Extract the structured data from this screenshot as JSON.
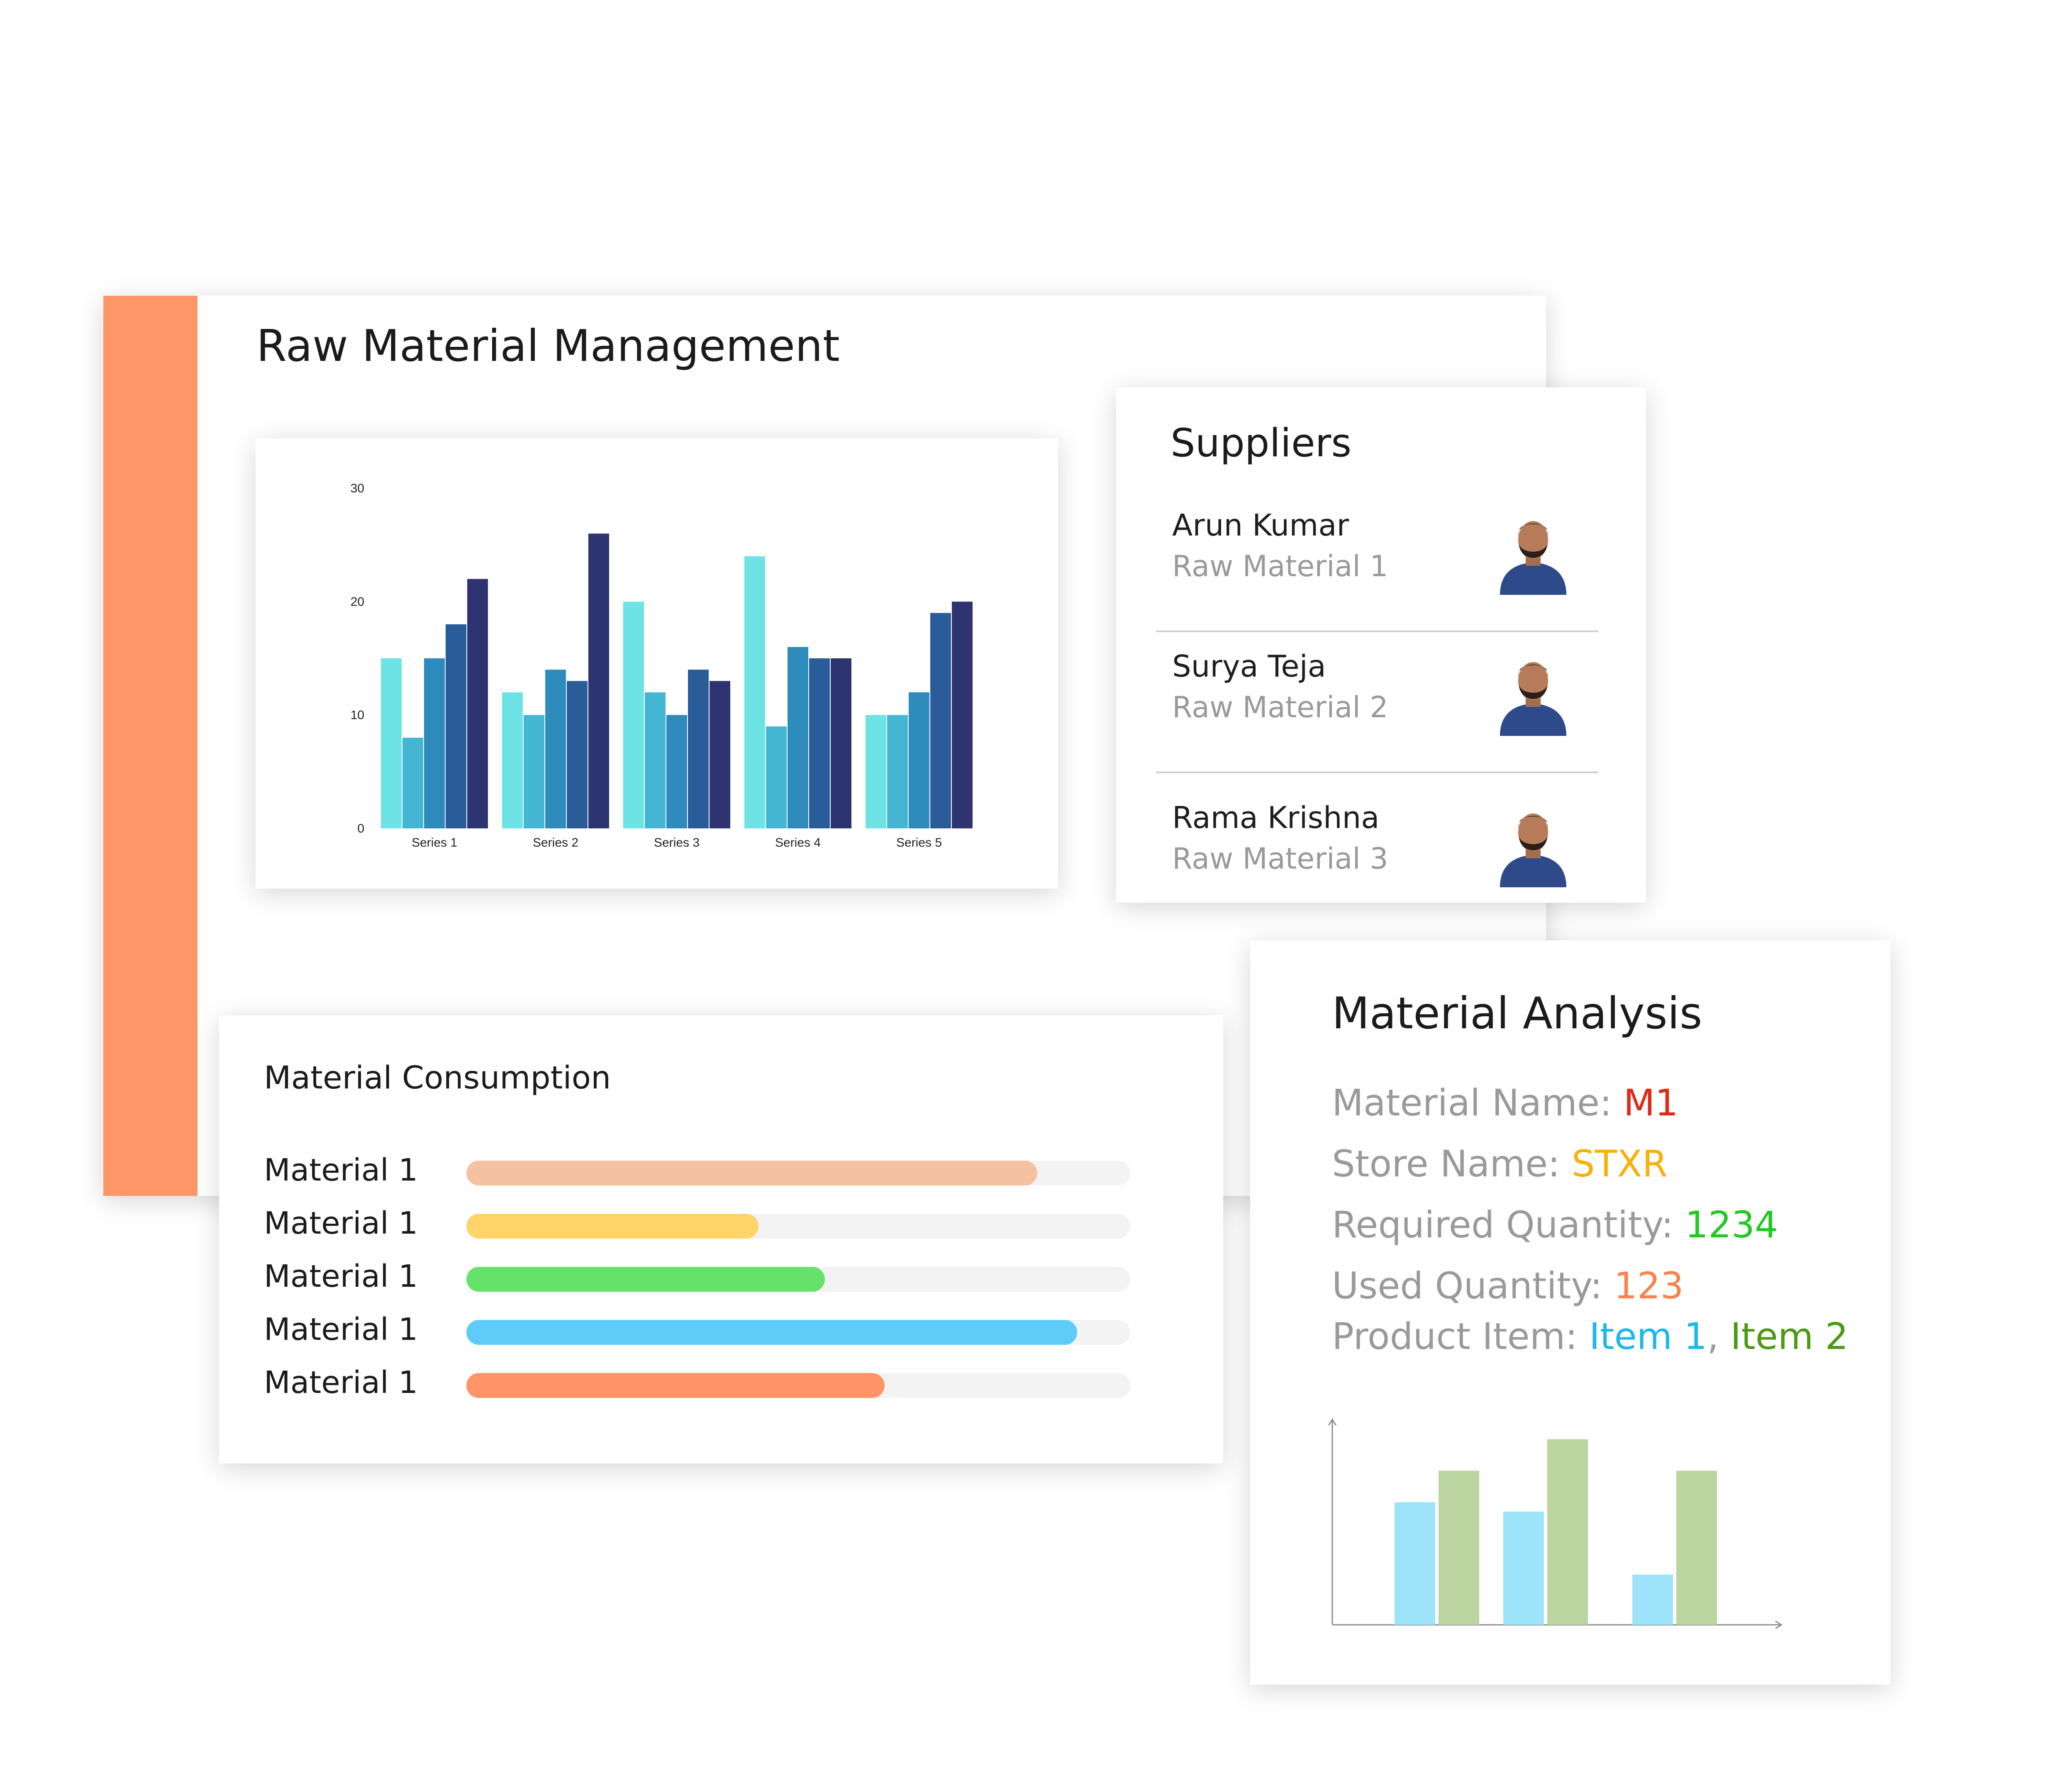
{
  "main": {
    "title": "Raw Material Management",
    "accent_color": "#ff9668"
  },
  "chart_data": [
    {
      "type": "bar",
      "categories": [
        "Series 1",
        "Series 2",
        "Series 3",
        "Series 4",
        "Series 5"
      ],
      "series": [
        {
          "values": [
            15,
            12,
            20,
            24,
            10
          ],
          "color": "#6ee3e5"
        },
        {
          "values": [
            8,
            10,
            12,
            9,
            10
          ],
          "color": "#44b6d4"
        },
        {
          "values": [
            15,
            14,
            10,
            16,
            12
          ],
          "color": "#2d8cbc"
        },
        {
          "values": [
            18,
            13,
            14,
            15,
            19
          ],
          "color": "#2b5c9a"
        },
        {
          "values": [
            22,
            26,
            13,
            15,
            20
          ],
          "color": "#2e3470"
        }
      ],
      "yticks": [
        0,
        10,
        20,
        30
      ],
      "ylim": [
        0,
        30
      ],
      "grid": false,
      "legend": "none"
    },
    {
      "type": "bar",
      "categories": [
        "",
        "",
        ""
      ],
      "series": [
        {
          "values": [
            3.9,
            3.6,
            1.6
          ],
          "color": "#9de3fa"
        },
        {
          "values": [
            4.9,
            5.9,
            4.9
          ],
          "color": "#bcd4a0"
        }
      ],
      "ylim": [
        0,
        6
      ],
      "axes": "arrows",
      "tick_labels": false
    }
  ],
  "suppliers": {
    "title": "Suppliers",
    "items": [
      {
        "name": "Arun Kumar",
        "material": "Raw Material 1"
      },
      {
        "name": "Surya Teja",
        "material": "Raw Material 2"
      },
      {
        "name": "Rama Krishna",
        "material": "Raw Material 3"
      }
    ]
  },
  "consumption": {
    "title": "Material Consumption",
    "items": [
      {
        "label": "Material 1",
        "progress": 0.86,
        "color": "#f5c2a1"
      },
      {
        "label": "Material 1",
        "progress": 0.44,
        "color": "#ffd56a"
      },
      {
        "label": "Material 1",
        "progress": 0.54,
        "color": "#66e26a"
      },
      {
        "label": "Material 1",
        "progress": 0.92,
        "color": "#5ecbf8"
      },
      {
        "label": "Material 1",
        "progress": 0.63,
        "color": "#ff9467"
      }
    ]
  },
  "analysis": {
    "title": "Material Analysis",
    "lines": [
      {
        "label": "Material Name: ",
        "value": "M1",
        "color": "#e02a17"
      },
      {
        "label": "Store Name: ",
        "value": "STXR",
        "color": "#f6b10a"
      },
      {
        "label": "Required Quantity: ",
        "value": "1234",
        "color": "#22c922"
      },
      {
        "label": "Used Quantity: ",
        "value": "123",
        "color": "#f6844c"
      }
    ],
    "product": {
      "label": "Product Item: ",
      "item1": "Item 1",
      "item1_color": "#1db7ec",
      "separator": ", ",
      "item2": "Item 2",
      "item2_color": "#4c9a13"
    }
  }
}
